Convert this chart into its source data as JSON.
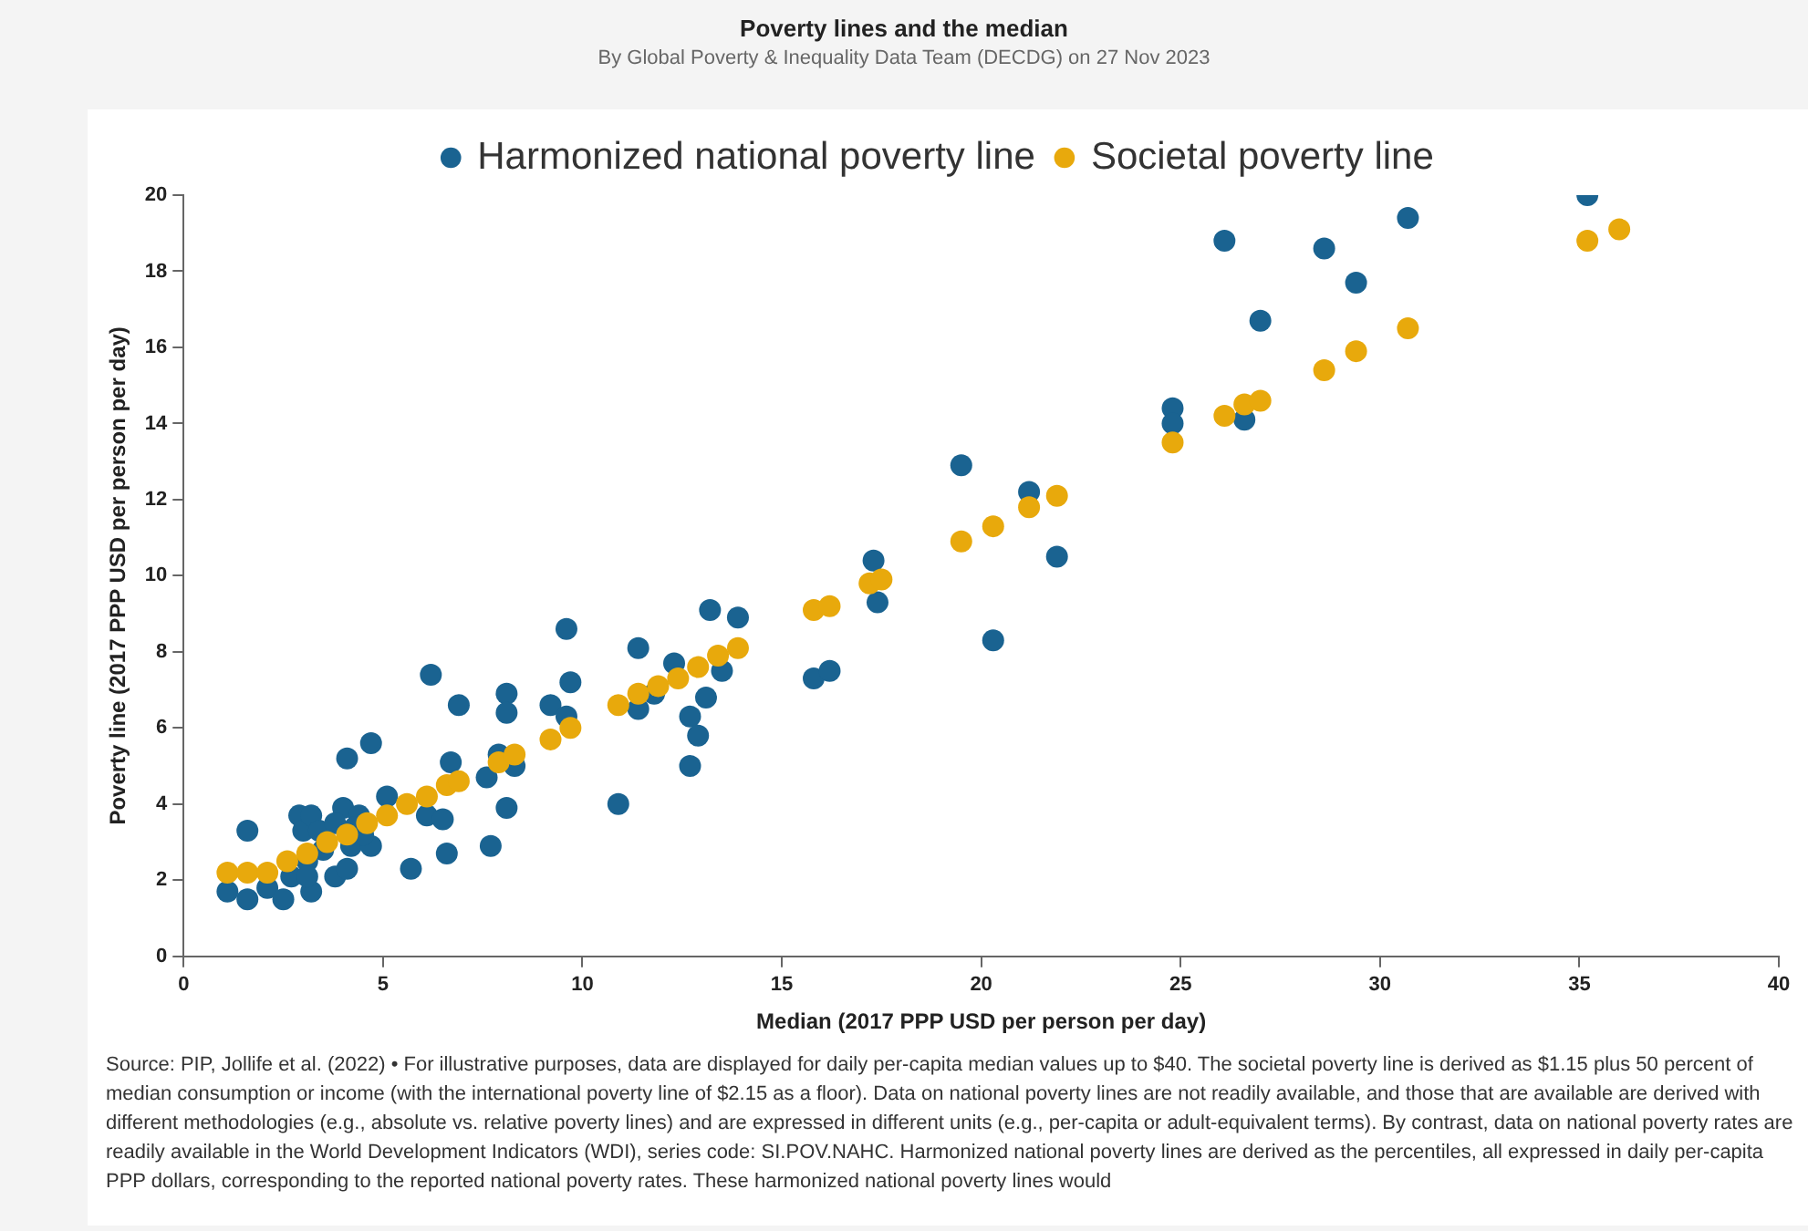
{
  "chart_data": {
    "type": "scatter",
    "title": "Poverty lines and the median",
    "subtitle": "By Global Poverty & Inequality Data Team (DECDG) on 27 Nov 2023",
    "xlabel": "Median (2017 PPP USD per person per day)",
    "ylabel": "Poverty line (2017 PPP USD per person per day)",
    "xlim": [
      0,
      40
    ],
    "xticks": [
      0,
      5,
      10,
      15,
      20,
      25,
      30,
      35,
      40
    ],
    "ylim": [
      0,
      20
    ],
    "yticks": [
      0,
      2,
      4,
      6,
      8,
      10,
      12,
      14,
      16,
      18,
      20
    ],
    "grid": false,
    "legend": "top",
    "marker": "circle",
    "series": [
      {
        "name": "Harmonized national poverty line",
        "color": "#1a6391",
        "x": [
          1.1,
          1.6,
          1.6,
          2.1,
          2.5,
          2.9,
          3.2,
          3.0,
          2.7,
          3.1,
          3.1,
          3.8,
          4.0,
          4.1,
          4.1,
          4.2,
          4.4,
          4.7,
          4.7,
          5.1,
          5.7,
          6.1,
          6.2,
          6.5,
          6.6,
          6.9,
          6.7,
          7.6,
          7.7,
          8.1,
          7.9,
          8.3,
          8.1,
          8.1,
          9.2,
          9.7,
          9.6,
          9.6,
          10.9,
          3.2,
          3.4,
          3.8,
          4.3,
          4.5,
          3.5,
          11.4,
          11.4,
          11.8,
          12.3,
          12.7,
          12.9,
          12.7,
          13.1,
          13.2,
          13.9,
          13.5,
          15.8,
          16.2,
          17.3,
          17.4,
          19.5,
          20.3,
          21.2,
          21.9,
          24.8,
          24.8,
          26.6,
          26.1,
          27.0,
          28.6,
          29.4,
          30.7,
          35.2
        ],
        "values": [
          1.7,
          1.5,
          3.3,
          1.8,
          1.5,
          3.7,
          1.7,
          3.3,
          2.1,
          2.5,
          2.1,
          2.1,
          3.9,
          5.2,
          2.3,
          2.9,
          3.7,
          5.6,
          2.9,
          4.2,
          2.3,
          3.7,
          7.4,
          3.6,
          2.7,
          6.6,
          5.1,
          4.7,
          2.9,
          3.9,
          5.3,
          5.0,
          6.9,
          6.4,
          6.6,
          7.2,
          6.3,
          8.6,
          4.0,
          3.7,
          3.3,
          3.5,
          3.4,
          3.2,
          2.8,
          8.1,
          6.5,
          6.9,
          7.7,
          6.3,
          5.8,
          5.0,
          6.8,
          9.1,
          8.9,
          7.5,
          7.3,
          7.5,
          10.4,
          9.3,
          12.9,
          8.3,
          12.2,
          10.5,
          14.4,
          14.0,
          14.1,
          18.8,
          16.7,
          18.6,
          17.7,
          19.4,
          20.0
        ]
      },
      {
        "name": "Societal poverty line",
        "color": "#e8a90c",
        "x": [
          1.1,
          1.6,
          2.1,
          2.6,
          3.1,
          3.6,
          4.1,
          4.6,
          5.1,
          5.6,
          6.1,
          6.6,
          6.9,
          7.9,
          8.3,
          9.2,
          9.7,
          10.9,
          11.4,
          11.9,
          12.4,
          12.9,
          13.4,
          13.9,
          15.8,
          16.2,
          17.2,
          17.5,
          19.5,
          20.3,
          21.2,
          21.9,
          24.8,
          26.1,
          26.6,
          27.0,
          28.6,
          29.4,
          30.7,
          35.2,
          36.0
        ],
        "values": [
          2.2,
          2.2,
          2.2,
          2.5,
          2.7,
          3.0,
          3.2,
          3.5,
          3.7,
          4.0,
          4.2,
          4.5,
          4.6,
          5.1,
          5.3,
          5.7,
          6.0,
          6.6,
          6.9,
          7.1,
          7.3,
          7.6,
          7.9,
          8.1,
          9.1,
          9.2,
          9.8,
          9.9,
          10.9,
          11.3,
          11.8,
          12.1,
          13.5,
          14.2,
          14.5,
          14.6,
          15.4,
          15.9,
          16.5,
          18.8,
          19.1
        ]
      }
    ],
    "annotations": [
      "Source: PIP, Jollife et al. (2022) • For illustrative purposes, data are displayed for daily per-capita median values up to $40. The societal poverty line is derived as $1.15 plus 50 percent of median consumption or income (with the international poverty line of $2.15 as a floor). Data on national poverty lines are not readily available, and those that are available are derived with different methodologies (e.g., absolute vs. relative poverty lines) and are expressed in different units (e.g., per-capita or adult-equivalent terms). By contrast, data on national poverty rates are readily available in the World Development Indicators (WDI), series code: SI.POV.NAHC. Harmonized national poverty lines are derived as the percentiles, all expressed in daily per-capita PPP dollars, corresponding to the reported national poverty rates. These harmonized national poverty lines would"
    ]
  }
}
